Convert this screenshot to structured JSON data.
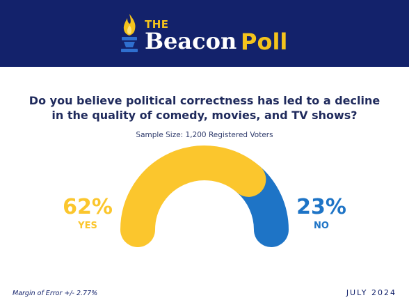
{
  "brand": {
    "the": "THE",
    "beacon": "Beacon",
    "poll": "Poll",
    "accent_color": "#f4c31c",
    "banner_color": "#13226b",
    "logo_icon": "torch-icon"
  },
  "question_line1": "Do you believe political correctness has led to a decline",
  "question_line2": "in the quality of comedy, movies, and TV shows?",
  "sample_size": "Sample Size: 1,200 Registered Voters",
  "margin_of_error": "Margin of Error +/- 2.77%",
  "date": "JULY 2024",
  "chart_data": {
    "type": "pie",
    "style": "half-donut",
    "categories": [
      "YES",
      "NO"
    ],
    "values": [
      62,
      23
    ],
    "value_labels": [
      "62%",
      "23%"
    ],
    "colors": [
      "#fbc62d",
      "#1e74c6"
    ]
  }
}
